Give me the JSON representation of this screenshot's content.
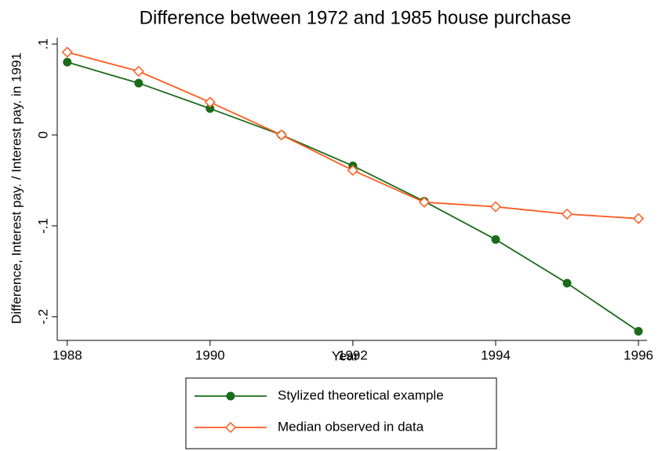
{
  "chart_data": {
    "type": "line",
    "title": "Difference between 1972 and 1985 house purchase",
    "x_label": "Year",
    "y_label": "Difference, Interest pay. / Interest pay.  in 1991",
    "x": [
      1988,
      1989,
      1990,
      1991,
      1992,
      1993,
      1994,
      1995,
      1996
    ],
    "series": [
      {
        "name": "Stylized theoretical example",
        "color": "#1a6b1a",
        "marker": "circle",
        "values": [
          0.08,
          0.057,
          0.029,
          0.0,
          -0.034,
          -0.073,
          -0.115,
          -0.163,
          -0.216
        ]
      },
      {
        "name": "Median observed in data",
        "color": "#ff5a1f",
        "marker": "diamond",
        "values": [
          0.091,
          0.07,
          0.036,
          0.0,
          -0.039,
          -0.074,
          -0.079,
          -0.087,
          -0.092
        ]
      }
    ],
    "xlim": [
      1987.86,
      1996.12
    ],
    "ylim": [
      -0.226,
      0.107
    ],
    "xticks": [
      1988,
      1990,
      1992,
      1994,
      1996
    ],
    "yticks": [
      {
        "value": 0.1,
        "label": ".1"
      },
      {
        "value": 0,
        "label": "0"
      },
      {
        "value": -0.1,
        "label": "-.1"
      },
      {
        "value": -0.2,
        "label": "-.2"
      }
    ],
    "legend_position": "bottom"
  }
}
